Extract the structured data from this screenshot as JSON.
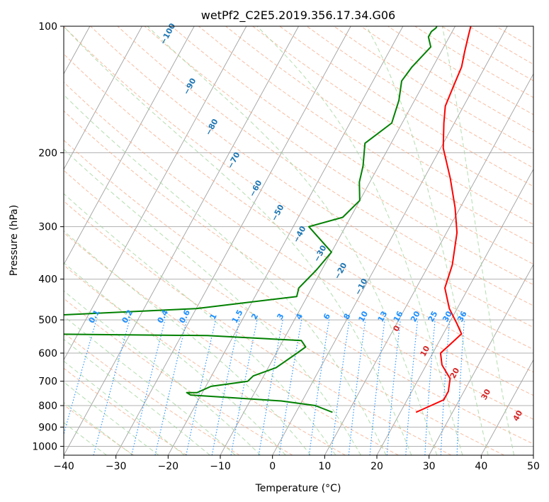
{
  "chart_data": {
    "type": "line",
    "title": "wetPf2_C2E5.2019.356.17.34.G06",
    "xlabel": "Temperature (°C)",
    "ylabel": "Pressure (hPa)",
    "xlim": [
      -40,
      50
    ],
    "ylim": [
      1050,
      100
    ],
    "y_scale": "log",
    "x_ticks": [
      -40,
      -30,
      -20,
      -10,
      0,
      10,
      20,
      30,
      40,
      50
    ],
    "y_ticks": [
      100,
      200,
      300,
      400,
      500,
      600,
      700,
      800,
      900,
      1000
    ],
    "grid": true,
    "colors": {
      "temperature": "#ff0000",
      "dewpoint": "#008000",
      "isotherms": "#a0a0a0",
      "dry_adiabats": "#f4a582",
      "moist_adiabats": "#a6d7a0",
      "mixing_ratio": "#1e90ff",
      "gridlines": "#b0b0b0"
    },
    "series": [
      {
        "key": "temperature",
        "x": [
          23.0,
          27.0,
          27.0,
          26.0,
          23.0,
          21.5,
          22.5,
          23.5,
          21.5,
          18.5,
          15.5,
          14.5,
          12.0,
          9.0,
          5.0,
          0.5,
          -2.0,
          -3.5,
          -4.0,
          -4.5,
          -5.5,
          -6.5,
          -7.0
        ],
        "y": [
          830,
          775,
          740,
          690,
          640,
          600,
          570,
          540,
          510,
          470,
          420,
          370,
          310,
          270,
          230,
          195,
          170,
          155,
          140,
          125,
          115,
          105,
          100
        ]
      },
      {
        "key": "dewpoint",
        "x": [
          7.0,
          3.0,
          -4.0,
          -22.0,
          -23.0,
          -21.0,
          -19.0,
          -12.5,
          -12.0,
          -8.5,
          -6.0,
          -5.0,
          -6.5,
          -25.0,
          -60.0,
          -60.0,
          -30.0,
          -12.0,
          -12.5,
          -11.0,
          -10.0,
          -17.0,
          -11.5,
          -10.0,
          -12.0,
          -13.0,
          -15.0,
          -12.0,
          -13.0,
          -14.5,
          -14.0,
          -12.5,
          -14.0,
          -14.0,
          -13.5,
          -13.5
        ],
        "y": [
          830,
          800,
          780,
          755,
          745,
          745,
          720,
          700,
          680,
          650,
          600,
          580,
          560,
          545,
          540,
          490,
          470,
          440,
          420,
          380,
          345,
          300,
          285,
          260,
          235,
          215,
          190,
          170,
          150,
          135,
          125,
          112,
          106,
          103,
          101,
          100
        ]
      }
    ],
    "dry_adiabat_labels": [
      "-100",
      "-90",
      "-80",
      "-70",
      "-60",
      "-50",
      "-40",
      "-30",
      "-20",
      "-10"
    ],
    "moist_adiabat_labels": [
      "0",
      "10",
      "20",
      "30",
      "40"
    ],
    "mixing_ratio_labels": [
      "0.1",
      "0.2",
      "0.4",
      "0.6",
      "1",
      "1.5",
      "2",
      "3",
      "4",
      "6",
      "8",
      "10",
      "13",
      "16",
      "20",
      "25",
      "30",
      "36"
    ]
  }
}
